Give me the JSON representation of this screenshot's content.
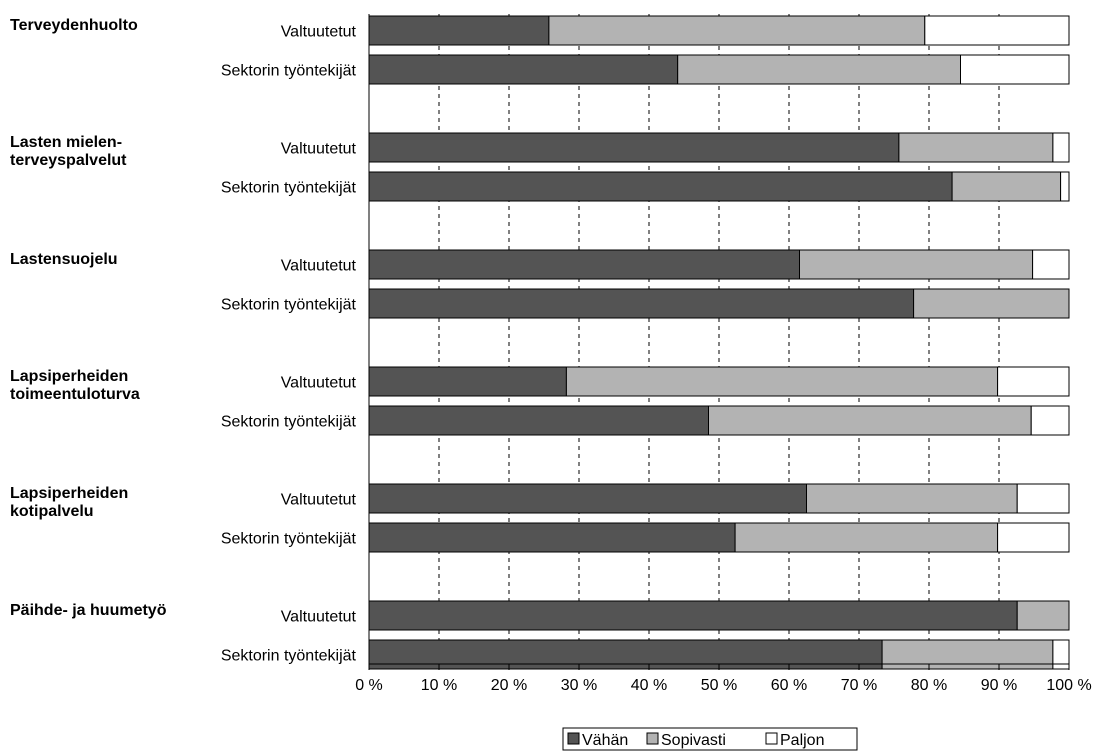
{
  "chart_data": {
    "type": "bar",
    "orientation": "horizontal",
    "stacked": true,
    "percent": true,
    "groups": [
      {
        "label_lines": [
          "Terveydenhuolto"
        ],
        "bars": [
          {
            "category": "Valtuutetut",
            "values": [
              25.7,
              53.7,
              20.6
            ]
          },
          {
            "category": "Sektorin työntekijät",
            "values": [
              44.1,
              40.4,
              15.5
            ]
          }
        ]
      },
      {
        "label_lines": [
          "Lasten mielen-",
          "terveyspalvelut"
        ],
        "bars": [
          {
            "category": "Valtuutetut",
            "values": [
              75.7,
              22.0,
              2.3
            ]
          },
          {
            "category": "Sektorin työntekijät",
            "values": [
              83.3,
              15.5,
              1.2
            ]
          }
        ]
      },
      {
        "label_lines": [
          "Lastensuojelu"
        ],
        "bars": [
          {
            "category": "Valtuutetut",
            "values": [
              61.5,
              33.3,
              5.2
            ]
          },
          {
            "category": "Sektorin työntekijät",
            "values": [
              77.8,
              22.2,
              0
            ]
          }
        ]
      },
      {
        "label_lines": [
          "Lapsiperheiden",
          "toimeentuloturva"
        ],
        "bars": [
          {
            "category": "Valtuutetut",
            "values": [
              28.2,
              61.6,
              10.2
            ]
          },
          {
            "category": "Sektorin työntekijät",
            "values": [
              48.5,
              46.1,
              5.4
            ]
          }
        ]
      },
      {
        "label_lines": [
          "Lapsiperheiden",
          "kotipalvelu"
        ],
        "bars": [
          {
            "category": "Valtuutetut",
            "values": [
              62.5,
              30.1,
              7.4
            ]
          },
          {
            "category": "Sektorin työntekijät",
            "values": [
              52.3,
              37.5,
              10.2
            ]
          }
        ]
      },
      {
        "label_lines": [
          "Päihde- ja huumetyö"
        ],
        "bars": [
          {
            "category": "Valtuutetut",
            "values": [
              92.6,
              7.4,
              0
            ]
          },
          {
            "category": "Sektorin työntekijät",
            "values": [
              73.3,
              24.4,
              2.3
            ]
          }
        ]
      }
    ],
    "series": [
      {
        "name": "Vähän",
        "color": "#545454"
      },
      {
        "name": "Sopivasti",
        "color": "#b3b3b3"
      },
      {
        "name": "Paljon",
        "color": "#ffffff"
      }
    ],
    "xlim": [
      0,
      100
    ],
    "x_ticks": [
      "0 %",
      "10 %",
      "20 %",
      "30 %",
      "40 %",
      "50 %",
      "60 %",
      "70 %",
      "80 %",
      "90 %",
      "100 %"
    ],
    "grid": "vertical dashed",
    "legend_position": "bottom-center"
  }
}
